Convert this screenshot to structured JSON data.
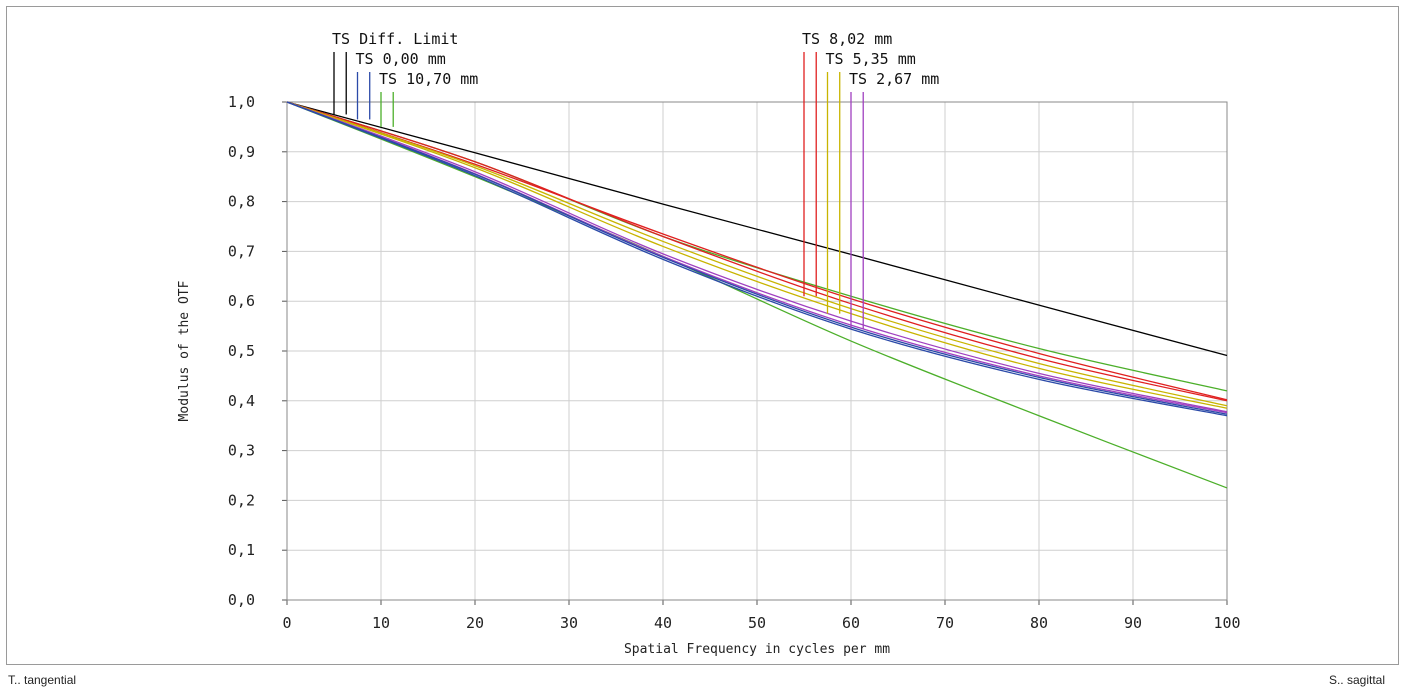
{
  "footer": {
    "left": "T.. tangential",
    "right": "S.. sagittal"
  },
  "chart_data": {
    "type": "line",
    "xlabel": "Spatial Frequency in cycles per mm",
    "ylabel": "Modulus of the OTF",
    "xlim": [
      0,
      100
    ],
    "ylim": [
      0,
      1.0
    ],
    "x_ticks": [
      "0",
      "10",
      "20",
      "30",
      "40",
      "50",
      "60",
      "70",
      "80",
      "90",
      "100"
    ],
    "y_ticks": [
      "0,0",
      "0,1",
      "0,2",
      "0,3",
      "0,4",
      "0,5",
      "0,6",
      "0,7",
      "0,8",
      "0,9",
      "1,0"
    ],
    "grid": true,
    "legend": [
      {
        "label": "TS Diff. Limit",
        "color": "#000000",
        "x_markers": [
          5.0,
          6.3
        ],
        "y_end": 0.975,
        "group": "left"
      },
      {
        "label": "TS 0,00 mm",
        "color": "#2b4aa8",
        "x_markers": [
          7.5,
          8.8
        ],
        "y_end": 0.965,
        "group": "left"
      },
      {
        "label": "TS 10,70 mm",
        "color": "#4caf2a",
        "x_markers": [
          10.0,
          11.3
        ],
        "y_end": 0.95,
        "group": "left"
      },
      {
        "label": "TS 8,02 mm",
        "color": "#e02020",
        "x_markers": [
          55.0,
          56.3
        ],
        "y_end": 0.61,
        "group": "right"
      },
      {
        "label": "TS 5,35 mm",
        "color": "#c8b400",
        "x_markers": [
          57.5,
          58.8
        ],
        "y_end": 0.575,
        "group": "right"
      },
      {
        "label": "TS 2,67 mm",
        "color": "#a040c0",
        "x_markers": [
          60.0,
          61.3
        ],
        "y_end": 0.545,
        "group": "right"
      }
    ],
    "series": [
      {
        "label_ref": "TS Diff. Limit",
        "color": "#000000",
        "x": [
          0,
          20,
          40,
          60,
          80,
          100
        ],
        "y": [
          1.0,
          0.898,
          0.795,
          0.694,
          0.592,
          0.491
        ]
      },
      {
        "label_ref": "TS 10,70 mm (T)",
        "color": "#4caf2a",
        "x": [
          0,
          20,
          40,
          60,
          80,
          100
        ],
        "y": [
          1.0,
          0.85,
          0.69,
          0.52,
          0.37,
          0.225
        ]
      },
      {
        "label_ref": "TS 10,70 mm (S)",
        "color": "#4caf2a",
        "x": [
          0,
          20,
          40,
          60,
          80,
          100
        ],
        "y": [
          1.0,
          0.88,
          0.73,
          0.61,
          0.505,
          0.42
        ]
      },
      {
        "label_ref": "TS 8,02 mm (T)",
        "color": "#e02020",
        "x": [
          0,
          20,
          40,
          60,
          80,
          100
        ],
        "y": [
          1.0,
          0.875,
          0.735,
          0.605,
          0.495,
          0.402
        ]
      },
      {
        "label_ref": "TS 8,02 mm (S)",
        "color": "#e02020",
        "x": [
          0,
          20,
          40,
          60,
          80,
          100
        ],
        "y": [
          1.0,
          0.88,
          0.73,
          0.595,
          0.485,
          0.4
        ]
      },
      {
        "label_ref": "TS 5,35 mm (T)",
        "color": "#c8b400",
        "x": [
          0,
          20,
          40,
          60,
          80,
          100
        ],
        "y": [
          1.0,
          0.872,
          0.72,
          0.585,
          0.475,
          0.39
        ]
      },
      {
        "label_ref": "TS 5,35 mm (S)",
        "color": "#c8b400",
        "x": [
          0,
          20,
          40,
          60,
          80,
          100
        ],
        "y": [
          1.0,
          0.868,
          0.71,
          0.575,
          0.465,
          0.385
        ]
      },
      {
        "label_ref": "TS 2,67 mm (T)",
        "color": "#a040c0",
        "x": [
          0,
          20,
          40,
          60,
          80,
          100
        ],
        "y": [
          1.0,
          0.86,
          0.695,
          0.56,
          0.455,
          0.378
        ]
      },
      {
        "label_ref": "TS 2,67 mm (S)",
        "color": "#a040c0",
        "x": [
          0,
          20,
          40,
          60,
          80,
          100
        ],
        "y": [
          1.0,
          0.856,
          0.69,
          0.552,
          0.45,
          0.376
        ]
      },
      {
        "label_ref": "TS 0,00 mm (T)",
        "color": "#2b4aa8",
        "x": [
          0,
          20,
          40,
          60,
          80,
          100
        ],
        "y": [
          1.0,
          0.855,
          0.688,
          0.548,
          0.447,
          0.373
        ]
      },
      {
        "label_ref": "TS 0,00 mm (S)",
        "color": "#2b4aa8",
        "x": [
          0,
          20,
          40,
          60,
          80,
          100
        ],
        "y": [
          1.0,
          0.852,
          0.684,
          0.544,
          0.443,
          0.37
        ]
      }
    ]
  }
}
